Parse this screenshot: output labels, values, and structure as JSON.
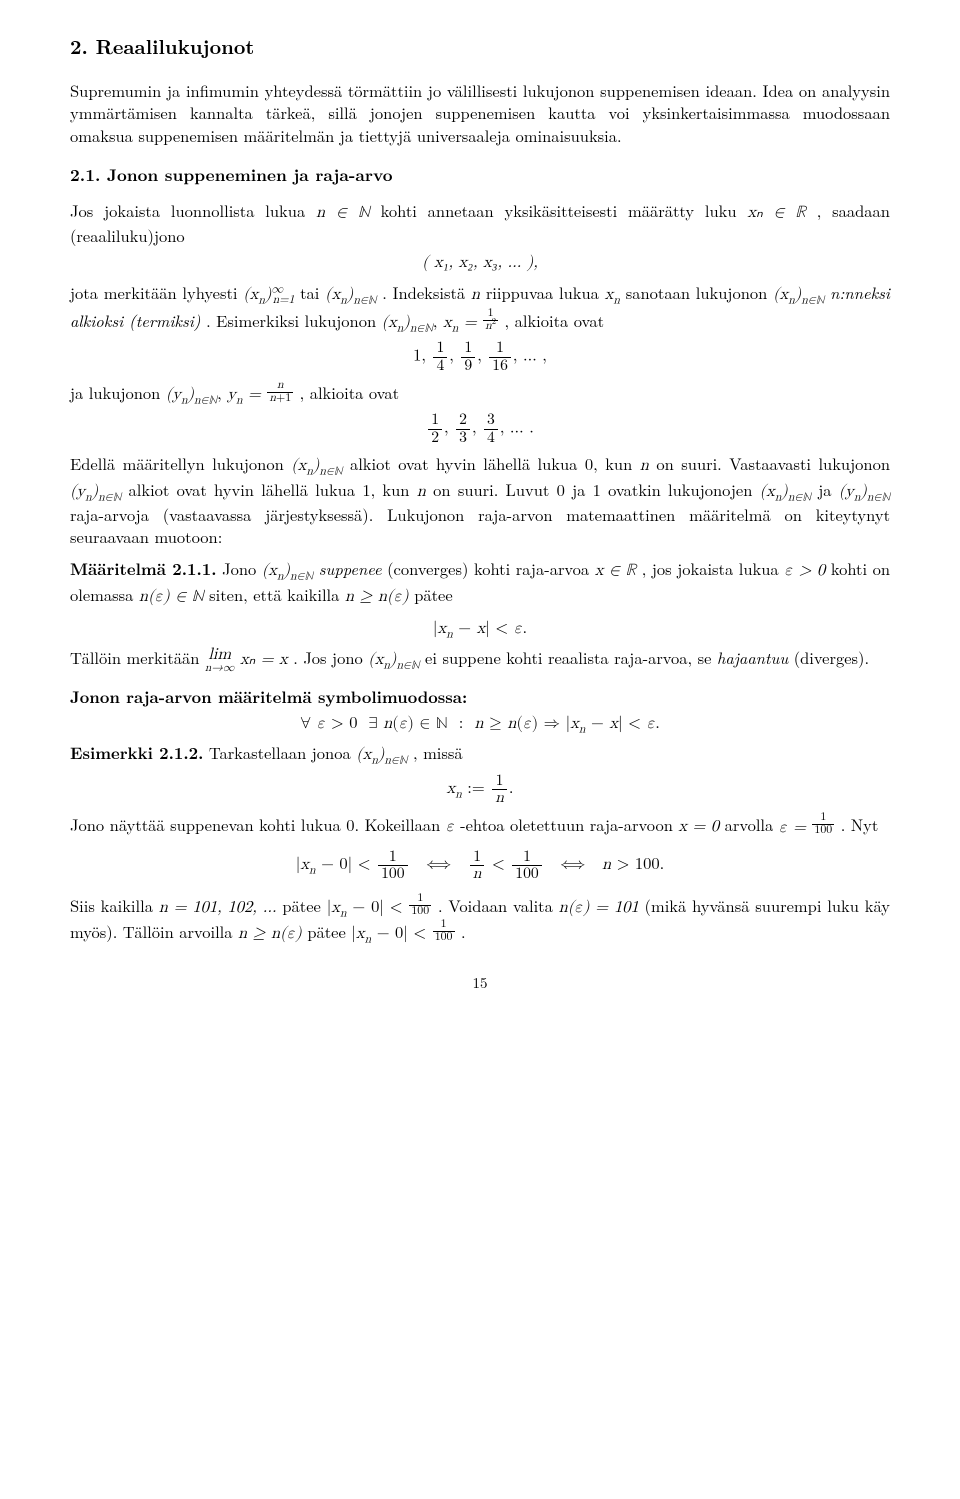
{
  "section": {
    "number": "2.",
    "title": "Reaalilukujonot"
  },
  "intro_p1": "Supremumin ja infimumin yhteydessä törmättiin jo välillisesti lukujonon suppenemisen ideaan. Idea on analyysin ymmärtämisen kannalta tärkeä, sillä jonojen suppenemisen kautta voi yksinkertaisimmassa muodossaan omaksua suppenemisen määritelmän ja tiettyjä universaaleja ominaisuuksia.",
  "subsection": {
    "number": "2.1.",
    "title": "Jonon suppeneminen ja raja-arvo"
  },
  "p_jos_a": "Jos jokaista luonnollista lukua ",
  "p_jos_b": " kohti annetaan yksikäsitteisesti määrätty luku ",
  "p_jos_c": ", saadaan (reaaliluku)jono",
  "seq_display": "( x₁, x₂, x₃, … ),",
  "p_merk_a": "jota merkitään lyhyesti ",
  "p_merk_b": " tai ",
  "p_merk_c": ". Indeksistä ",
  "p_merk_d": " riippuvaa lukua ",
  "p_merk_e": " sanotaan lukujonon ",
  "p_merk_f": " ",
  "term_italic": "n:nneksi alkioksi (termiksi)",
  "p_merk_g": ". Esimerkiksi lukujonon ",
  "p_merk_h": ", alkioita ovat",
  "p_ja_a": "ja lukujonon ",
  "p_ja_b": ", alkioita ovat",
  "p_edella_a": "Edellä määritellyn lukujonon ",
  "p_edella_b": " alkiot ovat hyvin lähellä lukua 0, kun ",
  "p_edella_c": " on suuri. Vastaavasti lukujonon ",
  "p_edella_d": " alkiot ovat hyvin lähellä lukua 1, kun ",
  "p_edella_e": " on suuri. Luvut 0 ja 1 ovatkin lukujonojen ",
  "p_edella_f": " ja ",
  "p_edella_g": " raja-arvoja (vastaavassa järjestyksessä). Lukujonon raja-arvon matemaattinen määritelmä on kiteytynyt seuraavaan muotoon:",
  "def_label": "Määritelmä 2.1.1.",
  "def_a": " Jono ",
  "def_b": " ",
  "def_supp": "suppenee",
  "def_c": " (converges) kohti raja-arvoa ",
  "def_d": ", jos jokaista lukua ",
  "def_e": " kohti on olemassa ",
  "def_f": " siten, että kaikilla ",
  "def_g": " pätee",
  "def_ineq": "|xₙ − x| < ε.",
  "talloin_a": "Tällöin merkitään ",
  "talloin_b": ". Jos jono ",
  "talloin_c": " ei suppene kohti reaalista raja-arvoa, se ",
  "hajaantuu": "hajaantuu",
  "talloin_d": " (diverges).",
  "sym_title": "Jonon raja-arvon määritelmä symbolimuodossa:",
  "sym_line": "∀ ε > 0  ∃ n(ε) ∈ ℕ  :  n ≥ n(ε) ⇒ |xₙ − x| < ε.",
  "ex_label": "Esimerkki 2.1.2.",
  "ex_a": " Tarkastellaan jonoa ",
  "ex_b": ", missä",
  "p_jono_a": "Jono näyttää suppenevan kohti lukua 0. Kokeillaan ",
  "p_jono_b": "-ehtoa oletettuun raja-arvoon ",
  "p_jono_c": " arvolla ",
  "p_jono_d": ". Nyt",
  "siis_a": "Siis kaikilla ",
  "siis_b": " pätee ",
  "siis_c": ". Voidaan valita ",
  "siis_d": " (mikä hyvänsä suurempi luku käy myös). Tällöin arvoilla ",
  "siis_e": " pätee ",
  "siis_f": ".",
  "page_number": "15",
  "math": {
    "n_in_N": "n ∈ ℕ",
    "xn_in_R": "xₙ ∈ ℝ",
    "xn_inf": "(xₙ)ₙ₌₁^∞",
    "xn_N": "(xₙ)ₙ∈ℕ",
    "yn_N": "(yₙ)ₙ∈ℕ",
    "n": "n",
    "xn": "xₙ",
    "xn_eq": "xₙ = ",
    "yn_eq": "yₙ = ",
    "x_in_R": "x ∈ ℝ",
    "eps_gt0": "ε > 0",
    "ne_in_N": "n(ε) ∈ ℕ",
    "n_ge_ne": "n ≥ n(ε)",
    "lim": "lim",
    "ntoinf": "n→∞",
    "lim_eq": " xₙ = x",
    "eps": "ε",
    "x_eq0": "x = 0",
    "eps_eq": "ε = ",
    "n_list": "n = 101, 102, …",
    "abs1": "|xₙ − 0| < ",
    "ne101": "n(ε) = 101",
    "xn_def": "xₙ := ",
    "n_gt100": "n > 100."
  }
}
